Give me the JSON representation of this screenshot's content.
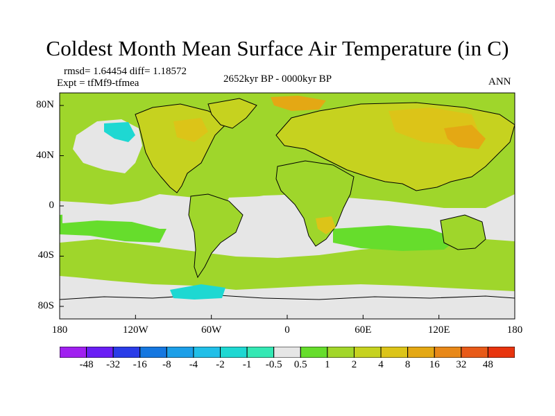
{
  "header": {
    "title": "Coldest Month Mean Surface Air Temperature (in C)",
    "stats": "rmsd= 1.64454 diff= 1.18572",
    "experiment": "Expt = tfMf9-tfmea",
    "period": "2652kyr BP - 0000kyr BP",
    "season": "ANN"
  },
  "map": {
    "lat_labels": [
      "80N",
      "40N",
      "0",
      "40S",
      "80S"
    ],
    "lon_labels": [
      "180",
      "120W",
      "60W",
      "0",
      "60E",
      "120E",
      "180"
    ],
    "lat_range": [
      -90,
      90
    ],
    "lon_range": [
      -180,
      180
    ],
    "ocean_color": "#e6e6e6",
    "land_color": "#9fd62b"
  },
  "colorbar": {
    "colors": [
      "#a020f0",
      "#6a1ef5",
      "#2a3ce8",
      "#1577e0",
      "#1c9fe8",
      "#21bfe8",
      "#1ed8d2",
      "#34e8b4",
      "#e6e6e6",
      "#66dd2c",
      "#a2d62a",
      "#c6d21f",
      "#dcc418",
      "#e4a814",
      "#e88818",
      "#e85a18",
      "#e8340e"
    ],
    "labels": [
      "-48",
      "-32",
      "-16",
      "-8",
      "-4",
      "-2",
      "-1",
      "-0.5",
      "0.5",
      "1",
      "2",
      "4",
      "8",
      "16",
      "32",
      "48"
    ]
  }
}
